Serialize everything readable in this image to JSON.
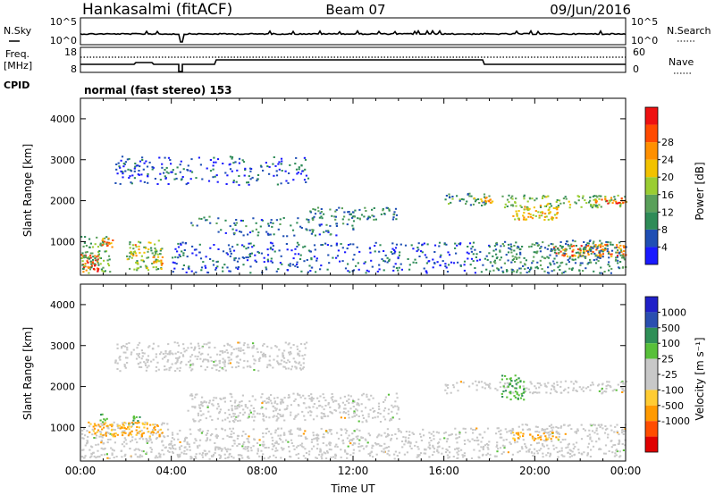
{
  "header": {
    "station": "Hankasalmi (fitACF)",
    "beam": "Beam 07",
    "date": "09/Jun/2016"
  },
  "noise_panel": {
    "left_label": "N.Sky",
    "right_label": "N.Search",
    "left_ticks": [
      "10^5",
      "10^0"
    ],
    "right_ticks": [
      "10^5",
      "10^0"
    ]
  },
  "freq_panel": {
    "left_label_line1": "Freq.",
    "left_label_line2": "[MHz]",
    "right_label": "Nave",
    "left_ticks": [
      "18",
      "8"
    ],
    "right_ticks": [
      "60",
      "0"
    ]
  },
  "cpid": {
    "label": "CPID",
    "text": "normal (fast stereo) 153"
  },
  "colors": {
    "power_scale": [
      "#1a1aff",
      "#1f4fb4",
      "#2e8b57",
      "#5aa05a",
      "#9acd32",
      "#f2c200",
      "#ff9000",
      "#ff4a00",
      "#ee1111"
    ],
    "velocity_scale": [
      "#e00000",
      "#ff4d00",
      "#ff9a00",
      "#ffcc33",
      "#c8c8c8",
      "#c8c8c8",
      "#58c03a",
      "#2f8f57",
      "#2a4fb0",
      "#2020c8"
    ],
    "ground_scatter": "#c8c8c8"
  },
  "chart_data": [
    {
      "type": "heatmap",
      "name": "power",
      "xlabel": "",
      "ylabel": "Slant Range [km]",
      "xlim": [
        0,
        24
      ],
      "ylim": [
        180,
        4500
      ],
      "yticks": [
        1000,
        2000,
        3000,
        4000
      ],
      "colorbar": {
        "label": "Power [dB]",
        "range": [
          0,
          32
        ],
        "ticks": [
          "4",
          "8",
          "12",
          "16",
          "20",
          "24",
          "28"
        ]
      },
      "features": [
        {
          "t0": 0.0,
          "t1": 0.8,
          "r0": 250,
          "r1": 700,
          "level": 27
        },
        {
          "t0": 0.0,
          "t1": 1.3,
          "r0": 250,
          "r1": 1150,
          "level": 12
        },
        {
          "t0": 0.9,
          "t1": 1.4,
          "r0": 850,
          "r1": 1100,
          "level": 24
        },
        {
          "t0": 2.0,
          "t1": 3.6,
          "r0": 300,
          "r1": 1050,
          "level": 14
        },
        {
          "t0": 2.2,
          "t1": 2.6,
          "r0": 650,
          "r1": 950,
          "level": 22
        },
        {
          "t0": 3.1,
          "t1": 3.6,
          "r0": 350,
          "r1": 650,
          "level": 22
        },
        {
          "t0": 4.7,
          "t1": 6.0,
          "r0": 1400,
          "r1": 1650,
          "level": 8
        },
        {
          "t0": 6.0,
          "t1": 12.0,
          "r0": 1150,
          "r1": 1600,
          "level": 7
        },
        {
          "t0": 10.0,
          "t1": 14.0,
          "r0": 1550,
          "r1": 1850,
          "level": 9
        },
        {
          "t0": 16.0,
          "t1": 18.0,
          "r0": 1900,
          "r1": 2200,
          "level": 10
        },
        {
          "t0": 17.3,
          "t1": 18.2,
          "r0": 1950,
          "r1": 2100,
          "level": 22
        },
        {
          "t0": 18.5,
          "t1": 24.0,
          "r0": 1850,
          "r1": 2150,
          "level": 13
        },
        {
          "t0": 19.0,
          "t1": 21.0,
          "r0": 1550,
          "r1": 1900,
          "level": 20
        },
        {
          "t0": 22.5,
          "t1": 24.0,
          "r0": 1950,
          "r1": 2100,
          "level": 26
        },
        {
          "t0": 20.8,
          "t1": 24.0,
          "r0": 650,
          "r1": 950,
          "level": 24
        },
        {
          "t0": 18.0,
          "t1": 24.0,
          "r0": 250,
          "r1": 1050,
          "level": 9
        },
        {
          "t0": 4.0,
          "t1": 18.0,
          "r0": 250,
          "r1": 1000,
          "level": 5
        },
        {
          "t0": 1.5,
          "t1": 10.0,
          "r0": 2400,
          "r1": 3100,
          "level": 5
        }
      ]
    },
    {
      "type": "heatmap",
      "name": "velocity",
      "xlabel": "Time UT",
      "ylabel": "Slant Range [km]",
      "xlim": [
        0,
        24
      ],
      "ylim": [
        180,
        4500
      ],
      "xticks": [
        "00:00",
        "04:00",
        "08:00",
        "12:00",
        "16:00",
        "20:00",
        "00:00"
      ],
      "yticks": [
        1000,
        2000,
        3000,
        4000
      ],
      "colorbar": {
        "label": "Velocity [m s⁻¹]",
        "ticks": [
          "1000",
          "500",
          "100",
          "25",
          "-25",
          "-100",
          "-500",
          "-1000"
        ]
      },
      "features": [
        {
          "t0": 0.0,
          "t1": 4.0,
          "r0": 250,
          "r1": 1150,
          "class": "ground"
        },
        {
          "t0": 0.8,
          "t1": 1.2,
          "r0": 1150,
          "r1": 1350,
          "class": "positive"
        },
        {
          "t0": 2.0,
          "t1": 2.6,
          "r0": 1100,
          "r1": 1300,
          "class": "positive"
        },
        {
          "t0": 0.3,
          "t1": 3.6,
          "r0": 800,
          "r1": 1150,
          "class": "negative"
        },
        {
          "t0": 4.7,
          "t1": 14.0,
          "r0": 1150,
          "r1": 1850,
          "class": "ground"
        },
        {
          "t0": 16.0,
          "t1": 24.0,
          "r0": 1850,
          "r1": 2150,
          "class": "ground"
        },
        {
          "t0": 18.5,
          "t1": 19.5,
          "r0": 1700,
          "r1": 2300,
          "class": "positive"
        },
        {
          "t0": 18.2,
          "t1": 24.0,
          "r0": 300,
          "r1": 1100,
          "class": "ground"
        },
        {
          "t0": 19.0,
          "t1": 21.0,
          "r0": 700,
          "r1": 900,
          "class": "negative"
        },
        {
          "t0": 4.0,
          "t1": 18.0,
          "r0": 250,
          "r1": 1000,
          "class": "ground"
        },
        {
          "t0": 1.5,
          "t1": 10.0,
          "r0": 2400,
          "r1": 3100,
          "class": "ground"
        }
      ]
    }
  ]
}
